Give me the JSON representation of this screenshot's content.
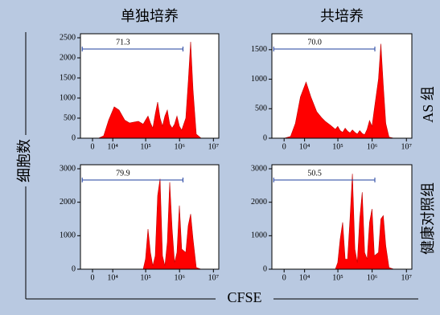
{
  "column_titles": [
    "单独培养",
    "共培养"
  ],
  "row_titles": [
    "AS 组",
    "健康对照组"
  ],
  "ylabel": "细胞数",
  "xlabel": "CFSE",
  "chart_data": [
    {
      "type": "histogram",
      "xscale": "asinh",
      "xscale_width": 5400,
      "color": "#ff0000",
      "x": [
        -3800,
        0,
        2400,
        4500,
        7200,
        11200,
        15900,
        23800,
        33100,
        43700,
        60700,
        84300,
        99000,
        117000,
        138000,
        163000,
        192000,
        226000,
        266000,
        313000,
        369000,
        435000,
        512000,
        604000,
        712000,
        838000,
        990000,
        1160000,
        1530000,
        1800000,
        2120000,
        2500000,
        3110000,
        4320000
      ],
      "values": [
        0,
        0,
        5,
        60,
        450,
        780,
        700,
        450,
        380,
        400,
        420,
        350,
        450,
        550,
        380,
        250,
        600,
        900,
        500,
        300,
        550,
        700,
        350,
        250,
        350,
        550,
        300,
        200,
        500,
        1400,
        2400,
        1200,
        100,
        0
      ],
      "xlim": [
        -4950,
        14400000
      ],
      "xticks": [
        0,
        {
          "value": 10000,
          "label": "10⁴"
        },
        {
          "value": 100000,
          "label": "10⁵"
        },
        {
          "value": 1000000,
          "label": "10⁶"
        },
        {
          "value": 10000000,
          "label": "10⁷"
        }
      ],
      "ylim": [
        0,
        2600
      ],
      "yticks": [
        0,
        500,
        1000,
        1500,
        2000,
        2500
      ],
      "gate": {
        "value": 71.3,
        "label": "71.3",
        "range": [
          -4100,
          1260000
        ]
      }
    },
    {
      "type": "histogram",
      "xscale": "asinh",
      "xscale_width": 5400,
      "color": "#ff0000",
      "x": [
        -3800,
        0,
        2400,
        4500,
        7200,
        11200,
        15900,
        23800,
        33100,
        43700,
        60700,
        84300,
        99000,
        117000,
        138000,
        163000,
        192000,
        226000,
        266000,
        313000,
        369000,
        435000,
        512000,
        604000,
        712000,
        838000,
        990000,
        1160000,
        1530000,
        1800000,
        2120000,
        2500000,
        3110000,
        4320000
      ],
      "values": [
        0,
        0,
        30,
        250,
        700,
        950,
        700,
        450,
        350,
        280,
        220,
        150,
        200,
        130,
        100,
        170,
        120,
        90,
        140,
        100,
        70,
        130,
        80,
        60,
        150,
        300,
        200,
        500,
        1000,
        1600,
        900,
        250,
        20,
        0
      ],
      "xlim": [
        -4950,
        14400000
      ],
      "xticks": [
        0,
        {
          "value": 10000,
          "label": "10⁴"
        },
        {
          "value": 100000,
          "label": "10⁵"
        },
        {
          "value": 1000000,
          "label": "10⁶"
        },
        {
          "value": 10000000,
          "label": "10⁷"
        }
      ],
      "ylim": [
        0,
        1770
      ],
      "yticks": [
        0,
        500,
        1000,
        1500
      ],
      "gate": {
        "value": 70,
        "label": "70.0",
        "range": [
          -4100,
          1200000
        ]
      }
    },
    {
      "type": "histogram",
      "xscale": "asinh",
      "xscale_width": 5400,
      "color": "#ff0000",
      "x": [
        -3800,
        0,
        2400,
        4500,
        7200,
        11200,
        15900,
        23800,
        33100,
        43700,
        60700,
        84300,
        99000,
        117000,
        138000,
        163000,
        192000,
        226000,
        266000,
        313000,
        369000,
        435000,
        512000,
        604000,
        712000,
        838000,
        990000,
        1160000,
        1530000,
        1800000,
        2120000,
        2500000,
        3110000,
        4320000
      ],
      "values": [
        0,
        0,
        0,
        0,
        0,
        0,
        0,
        0,
        0,
        0,
        0,
        0,
        300,
        1200,
        500,
        100,
        400,
        2200,
        2700,
        400,
        100,
        800,
        2600,
        1200,
        200,
        500,
        1900,
        600,
        500,
        1300,
        1650,
        900,
        50,
        0
      ],
      "xlim": [
        -4950,
        14400000
      ],
      "xticks": [
        0,
        {
          "value": 10000,
          "label": "10⁴"
        },
        {
          "value": 100000,
          "label": "10⁵"
        },
        {
          "value": 1000000,
          "label": "10⁶"
        },
        {
          "value": 10000000,
          "label": "10⁷"
        }
      ],
      "ylim": [
        0,
        3120
      ],
      "yticks": [
        0,
        1000,
        2000,
        3000
      ],
      "gate": {
        "value": 79.9,
        "label": "79.9",
        "range": [
          -4100,
          1260000
        ]
      }
    },
    {
      "type": "histogram",
      "xscale": "asinh",
      "xscale_width": 5400,
      "color": "#ff0000",
      "x": [
        -3800,
        0,
        2400,
        4500,
        7200,
        11200,
        15900,
        23800,
        33100,
        43700,
        60700,
        84300,
        99000,
        117000,
        138000,
        163000,
        192000,
        226000,
        266000,
        313000,
        369000,
        435000,
        512000,
        604000,
        712000,
        838000,
        990000,
        1160000,
        1530000,
        1800000,
        2120000,
        2500000,
        3110000,
        4320000
      ],
      "values": [
        0,
        0,
        0,
        0,
        0,
        0,
        0,
        0,
        0,
        0,
        0,
        0,
        200,
        900,
        1400,
        300,
        300,
        1500,
        2850,
        600,
        200,
        1500,
        2300,
        500,
        300,
        1400,
        1800,
        400,
        500,
        1500,
        1600,
        700,
        50,
        0
      ],
      "xlim": [
        -4950,
        14400000
      ],
      "xticks": [
        0,
        {
          "value": 10000,
          "label": "10⁴"
        },
        {
          "value": 100000,
          "label": "10⁵"
        },
        {
          "value": 1000000,
          "label": "10⁶"
        },
        {
          "value": 10000000,
          "label": "10⁷"
        }
      ],
      "ylim": [
        0,
        3120
      ],
      "yticks": [
        0,
        1000,
        2000,
        3000
      ],
      "gate": {
        "value": 50.5,
        "label": "50.5",
        "range": [
          -4100,
          1200000
        ]
      }
    }
  ]
}
